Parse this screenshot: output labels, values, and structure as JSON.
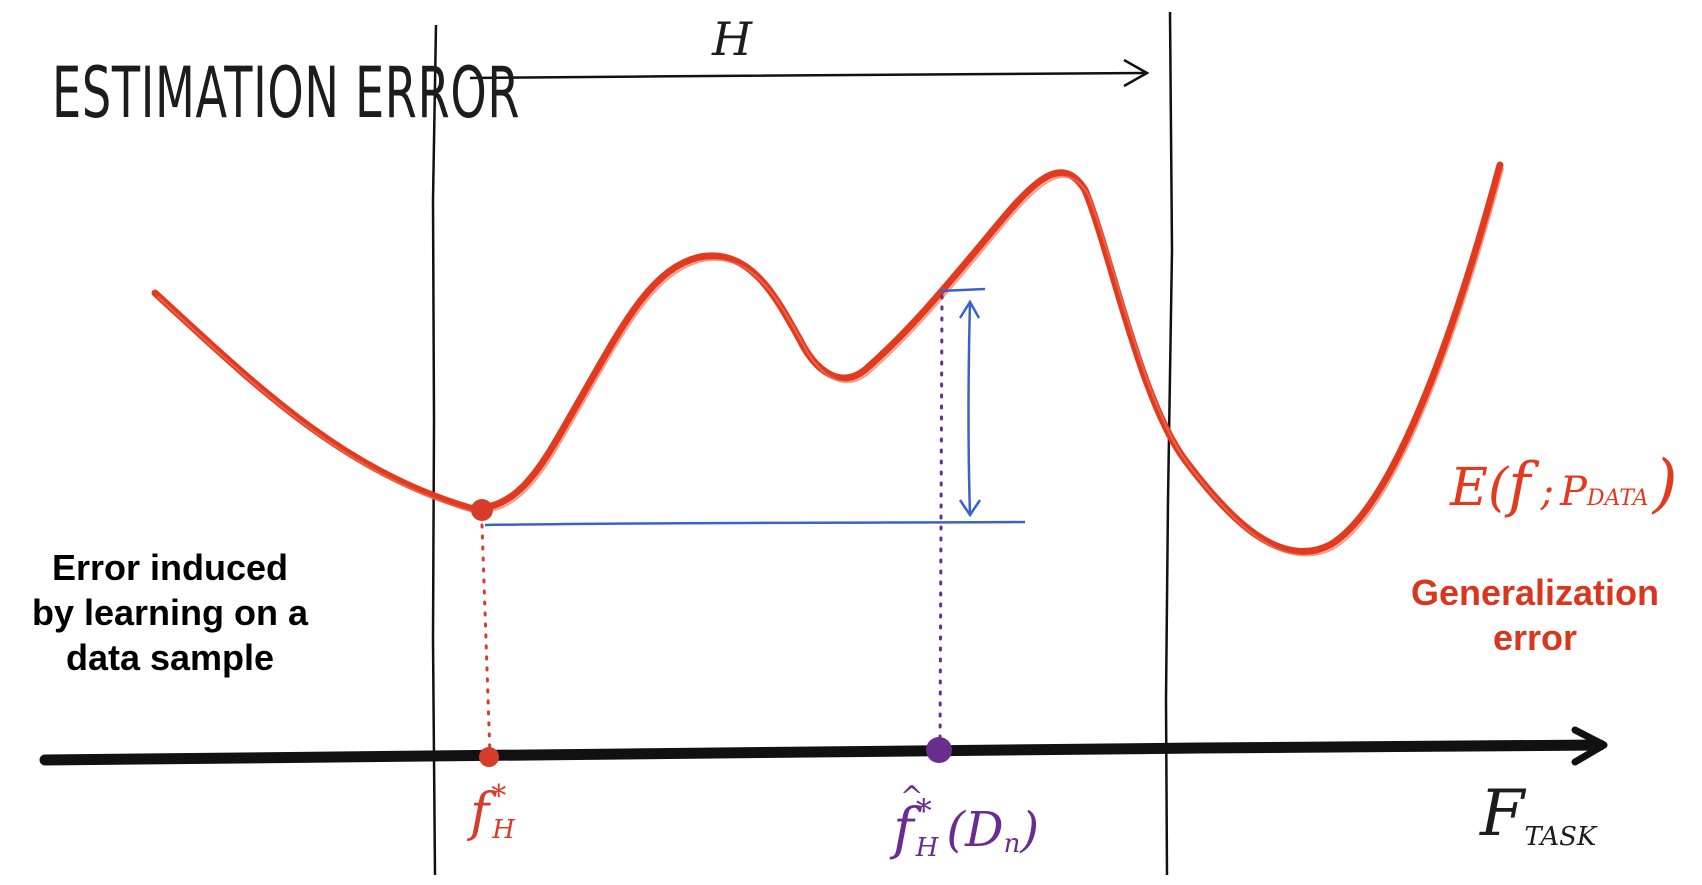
{
  "title": "ESTIMATION ERROR",
  "hypothesis_space_label": "H",
  "curve_label": {
    "main": "E(",
    "f": "f",
    "sep": ";",
    "p": "P",
    "p_sub": "DATA",
    "close": ")"
  },
  "axis_label": {
    "main": "F",
    "sub": "TASK"
  },
  "point_best": {
    "f": "f",
    "star": "*",
    "sub": "H"
  },
  "point_estimate": {
    "hat": "^",
    "f": "f",
    "star": "*",
    "sub": "H",
    "arg": "(D",
    "arg_sub": "n",
    "close": ")"
  },
  "note_left": {
    "line1": "Error induced",
    "line2": "by learning on a",
    "line3": "data sample"
  },
  "note_right": {
    "line1": "Generalization",
    "line2": "error"
  },
  "colors": {
    "curve": "#e23a1e",
    "axis": "#111111",
    "gap": "#3a63c8",
    "best_point": "#d63c2a",
    "estimate_point": "#6a2c8e",
    "note_right": "#d9361e"
  }
}
